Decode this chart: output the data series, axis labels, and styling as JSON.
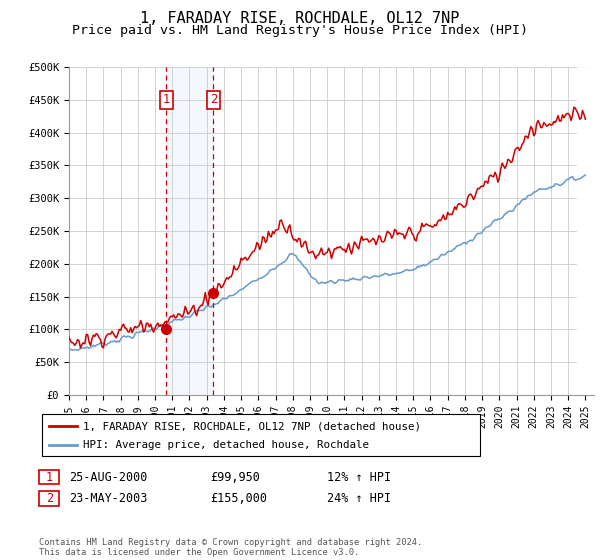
{
  "title": "1, FARADAY RISE, ROCHDALE, OL12 7NP",
  "subtitle": "Price paid vs. HM Land Registry's House Price Index (HPI)",
  "title_fontsize": 11,
  "subtitle_fontsize": 9.5,
  "ylim": [
    0,
    500000
  ],
  "xlim_start": 1995.0,
  "xlim_end": 2025.5,
  "yticks": [
    0,
    50000,
    100000,
    150000,
    200000,
    250000,
    300000,
    350000,
    400000,
    450000,
    500000
  ],
  "ytick_labels": [
    "£0",
    "£50K",
    "£100K",
    "£150K",
    "£200K",
    "£250K",
    "£300K",
    "£350K",
    "£400K",
    "£450K",
    "£500K"
  ],
  "xtick_years": [
    1995,
    1996,
    1997,
    1998,
    1999,
    2000,
    2001,
    2002,
    2003,
    2004,
    2005,
    2006,
    2007,
    2008,
    2009,
    2010,
    2011,
    2012,
    2013,
    2014,
    2015,
    2016,
    2017,
    2018,
    2019,
    2020,
    2021,
    2022,
    2023,
    2024,
    2025
  ],
  "red_color": "#cc0000",
  "blue_color": "#6699cc",
  "sale1_date": 2000.65,
  "sale1_price": 99950,
  "sale2_date": 2003.39,
  "sale2_price": 155000,
  "legend_line1": "1, FARADAY RISE, ROCHDALE, OL12 7NP (detached house)",
  "legend_line2": "HPI: Average price, detached house, Rochdale",
  "table_row1_num": "1",
  "table_row1_date": "25-AUG-2000",
  "table_row1_price": "£99,950",
  "table_row1_hpi": "12% ↑ HPI",
  "table_row2_num": "2",
  "table_row2_date": "23-MAY-2003",
  "table_row2_price": "£155,000",
  "table_row2_hpi": "24% ↑ HPI",
  "footer": "Contains HM Land Registry data © Crown copyright and database right 2024.\nThis data is licensed under the Open Government Licence v3.0.",
  "hatch_start": 2024.5,
  "hatch_end": 2025.5
}
